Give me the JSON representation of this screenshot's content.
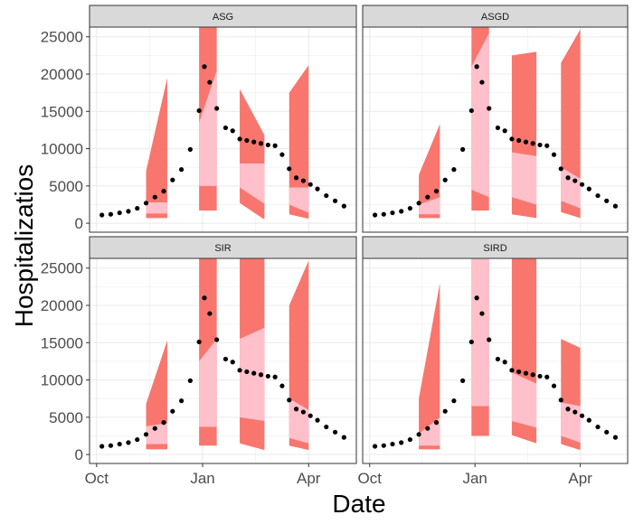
{
  "chart_data": {
    "type": "area",
    "xlabel": "Date",
    "ylabel": "Hospitalizatios",
    "x_axis": {
      "ticks": [
        {
          "label": "Oct",
          "month": 0
        },
        {
          "label": "Jan",
          "month": 3
        },
        {
          "label": "Apr",
          "month": 6
        }
      ],
      "range_months": [
        -0.2,
        7.35
      ]
    },
    "y_axis": {
      "ticks": [
        0,
        5000,
        10000,
        15000,
        20000,
        25000
      ],
      "ylim": [
        -1200,
        26300
      ]
    },
    "grid": true,
    "observed": [
      {
        "m": 0.15,
        "v": 1100
      },
      {
        "m": 0.4,
        "v": 1200
      },
      {
        "m": 0.65,
        "v": 1400
      },
      {
        "m": 0.9,
        "v": 1600
      },
      {
        "m": 1.15,
        "v": 2000
      },
      {
        "m": 1.4,
        "v": 2700
      },
      {
        "m": 1.65,
        "v": 3500
      },
      {
        "m": 1.9,
        "v": 4300
      },
      {
        "m": 2.15,
        "v": 5800
      },
      {
        "m": 2.4,
        "v": 7200
      },
      {
        "m": 2.65,
        "v": 9900
      },
      {
        "m": 2.9,
        "v": 15100
      },
      {
        "m": 3.05,
        "v": 21000
      },
      {
        "m": 3.2,
        "v": 18900
      },
      {
        "m": 3.4,
        "v": 15400
      },
      {
        "m": 3.65,
        "v": 12800
      },
      {
        "m": 3.85,
        "v": 12400
      },
      {
        "m": 4.05,
        "v": 11300
      },
      {
        "m": 4.25,
        "v": 11100
      },
      {
        "m": 4.45,
        "v": 10900
      },
      {
        "m": 4.65,
        "v": 10700
      },
      {
        "m": 4.85,
        "v": 10500
      },
      {
        "m": 5.05,
        "v": 10400
      },
      {
        "m": 5.25,
        "v": 9200
      },
      {
        "m": 5.45,
        "v": 7300
      },
      {
        "m": 5.65,
        "v": 6100
      },
      {
        "m": 5.85,
        "v": 5700
      },
      {
        "m": 6.05,
        "v": 5200
      },
      {
        "m": 6.25,
        "v": 4600
      },
      {
        "m": 6.5,
        "v": 3700
      },
      {
        "m": 6.75,
        "v": 3000
      },
      {
        "m": 7.0,
        "v": 2300
      }
    ],
    "colors": {
      "outer_band": "#f8766d",
      "inner_band": "#ffc0cb",
      "points": "#000000",
      "panel_bg": "#ffffff",
      "grid": "#ebebeb",
      "strip_bg": "#d9d9d9",
      "border": "#333333"
    },
    "panels": [
      {
        "name": "ASG",
        "bands": [
          {
            "x": [
              1.4,
              2.0
            ],
            "outer_lo": [
              700,
              700
            ],
            "outer_hi": [
              7000,
              19500
            ],
            "inner_lo": [
              1300,
              1300
            ],
            "inner_hi": [
              2800,
              2800
            ]
          },
          {
            "x": [
              2.9,
              3.4
            ],
            "outer_lo": [
              1700,
              1700
            ],
            "outer_hi": [
              26300,
              26300
            ],
            "inner_lo": [
              5000,
              5000
            ],
            "inner_hi": [
              13500,
              20500
            ]
          },
          {
            "x": [
              4.05,
              4.75
            ],
            "outer_lo": [
              2700,
              500
            ],
            "outer_hi": [
              18000,
              11800
            ],
            "inner_lo": [
              4800,
              2600
            ],
            "inner_hi": [
              8000,
              8000
            ]
          },
          {
            "x": [
              5.45,
              6.0
            ],
            "outer_lo": [
              1200,
              600
            ],
            "outer_hi": [
              17500,
              21200
            ],
            "inner_lo": [
              2500,
              1400
            ],
            "inner_hi": [
              4800,
              4800
            ]
          }
        ]
      },
      {
        "name": "ASGD",
        "bands": [
          {
            "x": [
              1.4,
              2.0
            ],
            "outer_lo": [
              700,
              700
            ],
            "outer_hi": [
              6500,
              13300
            ],
            "inner_lo": [
              1200,
              1200
            ],
            "inner_hi": [
              2500,
              3500
            ]
          },
          {
            "x": [
              2.9,
              3.4
            ],
            "outer_lo": [
              1700,
              1700
            ],
            "outer_hi": [
              26300,
              26300
            ],
            "inner_lo": [
              4500,
              3500
            ],
            "inner_hi": [
              21000,
              25500
            ]
          },
          {
            "x": [
              4.05,
              4.75
            ],
            "outer_lo": [
              1200,
              700
            ],
            "outer_hi": [
              22500,
              23000
            ],
            "inner_lo": [
              3500,
              2500
            ],
            "inner_hi": [
              9500,
              9000
            ]
          },
          {
            "x": [
              5.45,
              6.0
            ],
            "outer_lo": [
              1500,
              700
            ],
            "outer_hi": [
              21500,
              26000
            ],
            "inner_lo": [
              3000,
              2000
            ],
            "inner_hi": [
              7500,
              6000
            ]
          }
        ]
      },
      {
        "name": "SIR",
        "bands": [
          {
            "x": [
              1.4,
              2.0
            ],
            "outer_lo": [
              700,
              700
            ],
            "outer_hi": [
              6800,
              15300
            ],
            "inner_lo": [
              1400,
              1400
            ],
            "inner_hi": [
              3800,
              4200
            ]
          },
          {
            "x": [
              2.9,
              3.4
            ],
            "outer_lo": [
              1200,
              1200
            ],
            "outer_hi": [
              26300,
              26300
            ],
            "inner_lo": [
              3700,
              3700
            ],
            "inner_hi": [
              12500,
              15500
            ]
          },
          {
            "x": [
              4.05,
              4.75
            ],
            "outer_lo": [
              1500,
              600
            ],
            "outer_hi": [
              26300,
              26300
            ],
            "inner_lo": [
              5000,
              4500
            ],
            "inner_hi": [
              15500,
              17000
            ]
          },
          {
            "x": [
              5.45,
              6.0
            ],
            "outer_lo": [
              1200,
              600
            ],
            "outer_hi": [
              20000,
              26000
            ],
            "inner_lo": [
              2200,
              1500
            ],
            "inner_hi": [
              7500,
              6000
            ]
          }
        ]
      },
      {
        "name": "SIRD",
        "bands": [
          {
            "x": [
              1.4,
              2.0
            ],
            "outer_lo": [
              700,
              700
            ],
            "outer_hi": [
              7500,
              23000
            ],
            "inner_lo": [
              1200,
              1200
            ],
            "inner_hi": [
              2800,
              5000
            ]
          },
          {
            "x": [
              2.9,
              3.4
            ],
            "outer_lo": [
              2500,
              2500
            ],
            "outer_hi": [
              26300,
              26300
            ],
            "inner_lo": [
              6500,
              6500
            ],
            "inner_hi": [
              26300,
              26300
            ]
          },
          {
            "x": [
              4.05,
              4.75
            ],
            "outer_lo": [
              2600,
              1500
            ],
            "outer_hi": [
              26300,
              26300
            ],
            "inner_lo": [
              4500,
              3600
            ],
            "inner_hi": [
              11000,
              9500
            ]
          },
          {
            "x": [
              5.45,
              6.0
            ],
            "outer_lo": [
              1400,
              600
            ],
            "outer_hi": [
              15500,
              14300
            ],
            "inner_lo": [
              2500,
              1600
            ],
            "inner_hi": [
              7000,
              6500
            ]
          }
        ]
      }
    ]
  }
}
